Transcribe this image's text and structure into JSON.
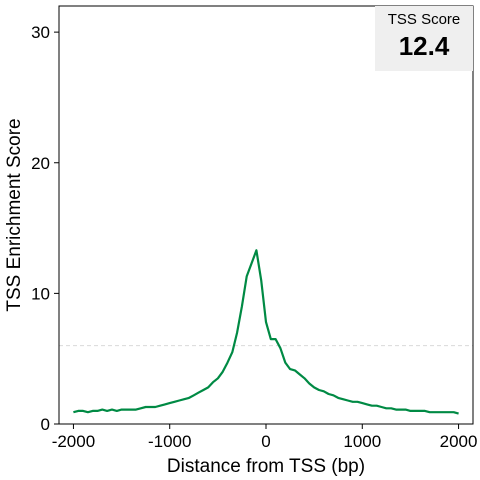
{
  "chart_data": {
    "type": "line",
    "title": "",
    "xlabel": "Distance from TSS (bp)",
    "ylabel": "TSS Enrichment Score",
    "xlim": [
      -2150,
      2150
    ],
    "ylim": [
      0,
      32
    ],
    "x_ticks": [
      -2000,
      -1000,
      0,
      1000,
      2000
    ],
    "x_tick_labels": [
      "-2000",
      "-1000",
      "0",
      "1000",
      "2000"
    ],
    "y_ticks": [
      0,
      10,
      20,
      30
    ],
    "y_tick_labels": [
      "0",
      "10",
      "20",
      "30"
    ],
    "grid": false,
    "reference_line": {
      "y": 6,
      "style": "dashed",
      "color": "#d9d9d9"
    },
    "line_color": "#008a44",
    "annotation": {
      "label": "TSS Score",
      "value": "12.4",
      "position": "top-right",
      "background": "#efefef"
    },
    "series": [
      {
        "x": [
          -2000,
          -1950,
          -1900,
          -1850,
          -1800,
          -1750,
          -1700,
          -1650,
          -1600,
          -1550,
          -1500,
          -1450,
          -1400,
          -1350,
          -1300,
          -1250,
          -1200,
          -1150,
          -1100,
          -1050,
          -1000,
          -950,
          -900,
          -850,
          -800,
          -750,
          -700,
          -650,
          -600,
          -550,
          -500,
          -450,
          -400,
          -350,
          -300,
          -250,
          -200,
          -150,
          -100,
          -50,
          0,
          50,
          100,
          150,
          200,
          250,
          300,
          350,
          400,
          450,
          500,
          550,
          600,
          650,
          700,
          750,
          800,
          850,
          900,
          950,
          1000,
          1050,
          1100,
          1150,
          1200,
          1250,
          1300,
          1350,
          1400,
          1450,
          1500,
          1550,
          1600,
          1650,
          1700,
          1750,
          1800,
          1850,
          1900,
          1950,
          2000
        ],
        "values": [
          0.9,
          1.0,
          1.0,
          0.9,
          1.0,
          1.0,
          1.1,
          1.0,
          1.1,
          1.0,
          1.1,
          1.1,
          1.1,
          1.1,
          1.2,
          1.3,
          1.3,
          1.3,
          1.4,
          1.5,
          1.6,
          1.7,
          1.8,
          1.9,
          2.0,
          2.2,
          2.4,
          2.6,
          2.8,
          3.2,
          3.5,
          4.0,
          4.7,
          5.5,
          7.0,
          9.0,
          11.3,
          12.3,
          13.3,
          11.0,
          7.8,
          6.5,
          6.5,
          5.8,
          4.7,
          4.2,
          4.1,
          3.8,
          3.5,
          3.1,
          2.8,
          2.6,
          2.5,
          2.3,
          2.2,
          2.0,
          1.9,
          1.8,
          1.7,
          1.7,
          1.6,
          1.5,
          1.4,
          1.4,
          1.3,
          1.2,
          1.2,
          1.1,
          1.1,
          1.1,
          1.0,
          1.0,
          1.0,
          1.0,
          0.9,
          0.9,
          0.9,
          0.9,
          0.9,
          0.9,
          0.8
        ]
      }
    ]
  }
}
